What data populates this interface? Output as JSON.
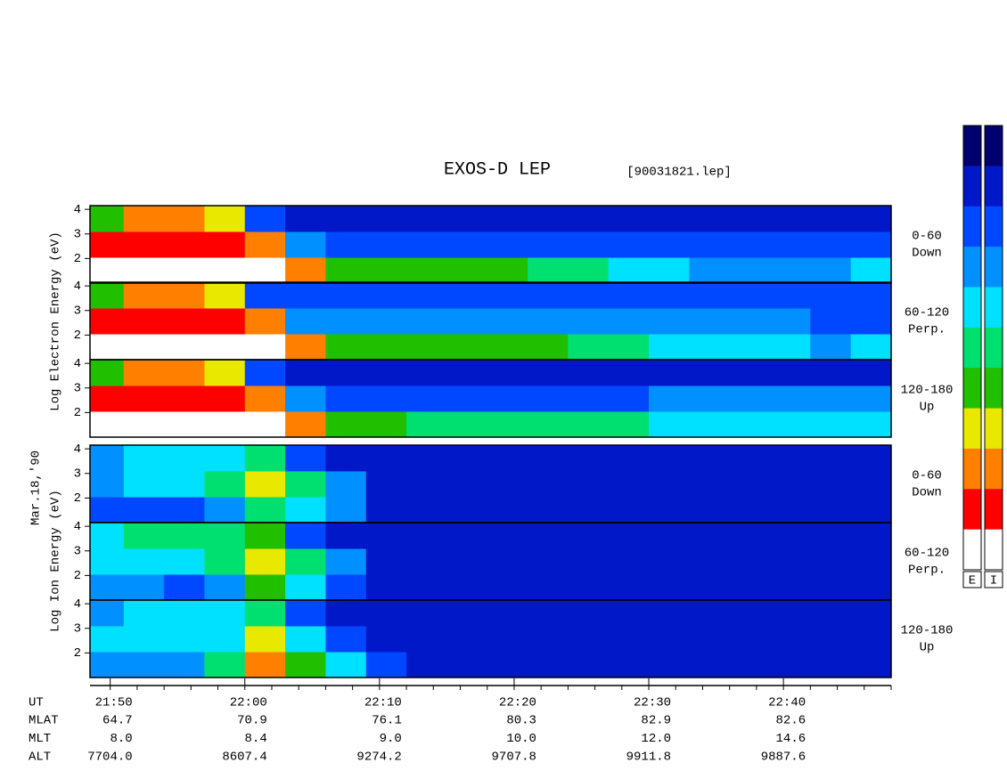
{
  "chart_data": {
    "type": "heatmap",
    "title": "EXOS-D LEP",
    "subtitle": "[90031821.lep]",
    "date_label": "Mar.18,'90",
    "groups": [
      {
        "label": "Log Electron Energy (eV)"
      },
      {
        "label": "Log Ion Energy (eV)"
      }
    ],
    "ylim": [
      1,
      4.15
    ],
    "yticks": [
      2,
      3,
      4
    ],
    "xlim": [
      1308.5,
      1368
    ],
    "xticks": [
      {
        "value": 1310,
        "label": "21:50"
      },
      {
        "value": 1320,
        "label": "22:00"
      },
      {
        "value": 1330,
        "label": "22:10"
      },
      {
        "value": 1340,
        "label": "22:20"
      },
      {
        "value": 1350,
        "label": "22:30"
      },
      {
        "value": 1360,
        "label": "22:40"
      }
    ],
    "xticks_minor": [
      1310,
      1312,
      1314,
      1316,
      1318,
      1320,
      1322,
      1324,
      1326,
      1328,
      1330,
      1332,
      1334,
      1336,
      1338,
      1340,
      1342,
      1344,
      1346,
      1348,
      1350,
      1352,
      1354,
      1356,
      1358,
      1360,
      1362,
      1364,
      1366,
      1368
    ],
    "x_edges": [
      1308,
      1311,
      1314,
      1317,
      1320,
      1323,
      1326,
      1329,
      1332,
      1335,
      1338,
      1341,
      1344,
      1347,
      1350,
      1353,
      1356,
      1359,
      1362,
      1365,
      1368
    ],
    "colormap": [
      "#00006e",
      "#0018c8",
      "#0048ff",
      "#0090ff",
      "#00e0ff",
      "#00e070",
      "#20c000",
      "#e8e800",
      "#ff8000",
      "#ff0000",
      "#ffffff"
    ],
    "colorbar_labels": [
      "E",
      "I"
    ],
    "panels": [
      {
        "group": 0,
        "label": [
          "0-60",
          "Down"
        ],
        "values": [
          [
            10,
            10,
            10,
            10,
            10,
            8,
            6,
            6,
            6,
            6,
            6,
            5,
            5,
            4,
            4,
            3,
            3,
            3,
            3,
            4
          ],
          [
            9,
            9,
            9,
            9,
            8,
            3,
            2,
            2,
            2,
            2,
            2,
            2,
            2,
            2,
            2,
            2,
            2,
            2,
            2,
            2
          ],
          [
            6,
            8,
            8,
            7,
            2,
            1,
            1,
            1,
            1,
            1,
            1,
            1,
            1,
            1,
            1,
            1,
            1,
            1,
            1,
            1
          ]
        ]
      },
      {
        "group": 0,
        "label": [
          "60-120",
          "Perp."
        ],
        "values": [
          [
            10,
            10,
            10,
            10,
            10,
            8,
            6,
            6,
            6,
            6,
            6,
            6,
            5,
            5,
            4,
            4,
            4,
            4,
            3,
            4
          ],
          [
            9,
            9,
            9,
            9,
            8,
            3,
            3,
            3,
            3,
            3,
            3,
            3,
            3,
            3,
            3,
            3,
            3,
            3,
            2,
            2
          ],
          [
            6,
            8,
            8,
            7,
            2,
            2,
            2,
            2,
            2,
            2,
            2,
            2,
            2,
            2,
            2,
            2,
            2,
            2,
            2,
            2
          ]
        ]
      },
      {
        "group": 0,
        "label": [
          "120-180",
          "Up"
        ],
        "values": [
          [
            10,
            10,
            10,
            10,
            10,
            8,
            6,
            6,
            5,
            5,
            5,
            5,
            5,
            5,
            4,
            4,
            4,
            4,
            4,
            4
          ],
          [
            9,
            9,
            9,
            9,
            8,
            3,
            2,
            2,
            2,
            2,
            2,
            2,
            2,
            2,
            3,
            3,
            3,
            3,
            3,
            3
          ],
          [
            6,
            8,
            8,
            7,
            2,
            1,
            1,
            1,
            1,
            1,
            1,
            1,
            1,
            1,
            1,
            1,
            1,
            1,
            1,
            1
          ]
        ]
      },
      {
        "group": 1,
        "label": [
          "0-60",
          "Down"
        ],
        "values": [
          [
            2,
            2,
            2,
            3,
            5,
            4,
            3,
            1,
            1,
            1,
            1,
            1,
            1,
            1,
            1,
            1,
            1,
            1,
            1,
            1
          ],
          [
            3,
            4,
            4,
            5,
            7,
            5,
            3,
            1,
            1,
            1,
            1,
            1,
            1,
            1,
            1,
            1,
            1,
            1,
            1,
            1
          ],
          [
            3,
            4,
            4,
            4,
            5,
            2,
            1,
            1,
            1,
            1,
            1,
            1,
            1,
            1,
            1,
            1,
            1,
            1,
            1,
            1
          ]
        ]
      },
      {
        "group": 1,
        "label": [
          "60-120",
          "Perp."
        ],
        "values": [
          [
            3,
            3,
            2,
            3,
            6,
            4,
            2,
            1,
            1,
            1,
            1,
            1,
            1,
            1,
            1,
            1,
            1,
            1,
            1,
            1
          ],
          [
            4,
            4,
            4,
            5,
            7,
            5,
            3,
            1,
            1,
            1,
            1,
            1,
            1,
            1,
            1,
            1,
            1,
            1,
            1,
            1
          ],
          [
            4,
            5,
            5,
            5,
            6,
            2,
            1,
            1,
            1,
            1,
            1,
            1,
            1,
            1,
            1,
            1,
            1,
            1,
            1,
            1
          ]
        ]
      },
      {
        "group": 1,
        "label": [
          "120-180",
          "Up"
        ],
        "values": [
          [
            3,
            3,
            3,
            5,
            8,
            6,
            4,
            2,
            1,
            1,
            1,
            1,
            1,
            1,
            1,
            1,
            1,
            1,
            1,
            1
          ],
          [
            4,
            4,
            4,
            4,
            7,
            4,
            2,
            1,
            1,
            1,
            1,
            1,
            1,
            1,
            1,
            1,
            1,
            1,
            1,
            1
          ],
          [
            3,
            4,
            4,
            4,
            5,
            2,
            1,
            1,
            1,
            1,
            1,
            1,
            1,
            1,
            1,
            1,
            1,
            1,
            1,
            1
          ]
        ]
      }
    ],
    "orbit": {
      "ut_label": "UT",
      "rows": [
        {
          "name": "MLAT",
          "values": [
            "64.7",
            "70.9",
            "76.1",
            "80.3",
            "82.9",
            "82.6"
          ]
        },
        {
          "name": "MLT",
          "values": [
            "8.0",
            "8.4",
            "9.0",
            "10.0",
            "12.0",
            "14.6"
          ]
        },
        {
          "name": "ALT",
          "values": [
            "7704.0",
            "8607.4",
            "9274.2",
            "9707.8",
            "9911.8",
            "9887.6"
          ]
        }
      ]
    }
  }
}
